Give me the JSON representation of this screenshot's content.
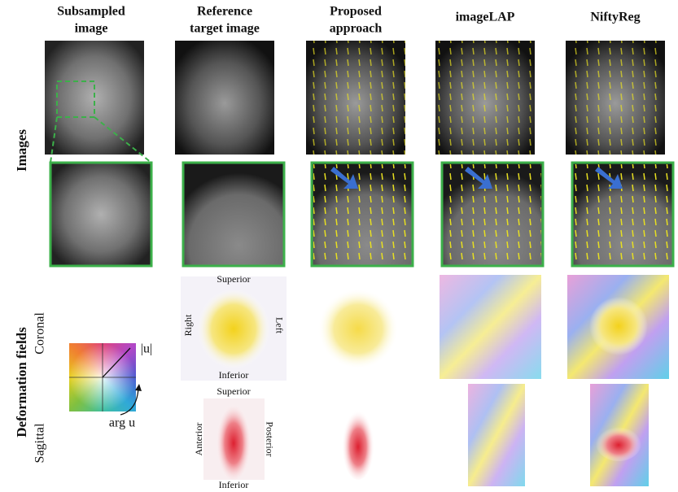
{
  "columns": [
    [
      "Subsampled",
      "image"
    ],
    [
      "Reference",
      "target image"
    ],
    [
      "Proposed",
      "approach"
    ],
    [
      "imageLAP"
    ],
    [
      "NiftyReg"
    ]
  ],
  "row_labels": {
    "images": "Images",
    "deformation_fields": "Deformation fields",
    "coronal": "Coronal",
    "sagittal": "Sagittal"
  },
  "orientation": {
    "coronal": {
      "superior": "Superior",
      "inferior": "Inferior",
      "right": "Right",
      "left": "Left"
    },
    "sagittal": {
      "superior": "Superior",
      "inferior": "Inferior",
      "anterior": "Anterior",
      "posterior": "Posterior"
    }
  },
  "legend": {
    "magnitude": "|u|",
    "angle": "arg u"
  }
}
